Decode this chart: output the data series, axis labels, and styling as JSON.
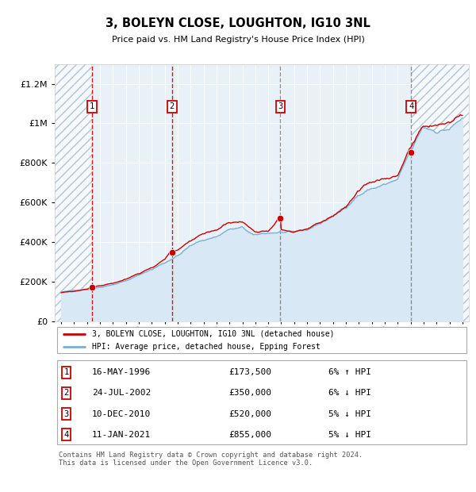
{
  "title": "3, BOLEYN CLOSE, LOUGHTON, IG10 3NL",
  "subtitle": "Price paid vs. HM Land Registry's House Price Index (HPI)",
  "xlim": [
    1993.5,
    2025.5
  ],
  "ylim": [
    0,
    1300000
  ],
  "yticks": [
    0,
    200000,
    400000,
    600000,
    800000,
    1000000,
    1200000
  ],
  "xticks": [
    1994,
    1995,
    1996,
    1997,
    1998,
    1999,
    2000,
    2001,
    2002,
    2003,
    2004,
    2005,
    2006,
    2007,
    2008,
    2009,
    2010,
    2011,
    2012,
    2013,
    2014,
    2015,
    2016,
    2017,
    2018,
    2019,
    2020,
    2021,
    2022,
    2023,
    2024,
    2025
  ],
  "sales": [
    {
      "date": 1996.37,
      "price": 173500,
      "label": "1",
      "pct": "6%",
      "dir": "↑",
      "date_str": "16-MAY-1996",
      "price_str": "£173,500",
      "vline_color": "#cc0000",
      "vline_style": "--"
    },
    {
      "date": 2002.56,
      "price": 350000,
      "label": "2",
      "pct": "6%",
      "dir": "↓",
      "date_str": "24-JUL-2002",
      "price_str": "£350,000",
      "vline_color": "#cc0000",
      "vline_style": "--"
    },
    {
      "date": 2010.94,
      "price": 520000,
      "label": "3",
      "pct": "5%",
      "dir": "↓",
      "date_str": "10-DEC-2010",
      "price_str": "£520,000",
      "vline_color": "#888888",
      "vline_style": "--"
    },
    {
      "date": 2021.03,
      "price": 855000,
      "label": "4",
      "pct": "5%",
      "dir": "↓",
      "date_str": "11-JAN-2021",
      "price_str": "£855,000",
      "vline_color": "#888888",
      "vline_style": "--"
    }
  ],
  "property_line_color": "#cc0000",
  "hpi_line_color": "#7ab0d4",
  "hpi_fill_color": "#d8e8f4",
  "plot_bg_color": "#e8f0f8",
  "grid_color": "#ffffff",
  "legend_line1": "3, BOLEYN CLOSE, LOUGHTON, IG10 3NL (detached house)",
  "legend_line2": "HPI: Average price, detached house, Epping Forest",
  "footnote": "Contains HM Land Registry data © Crown copyright and database right 2024.\nThis data is licensed under the Open Government Licence v3.0."
}
